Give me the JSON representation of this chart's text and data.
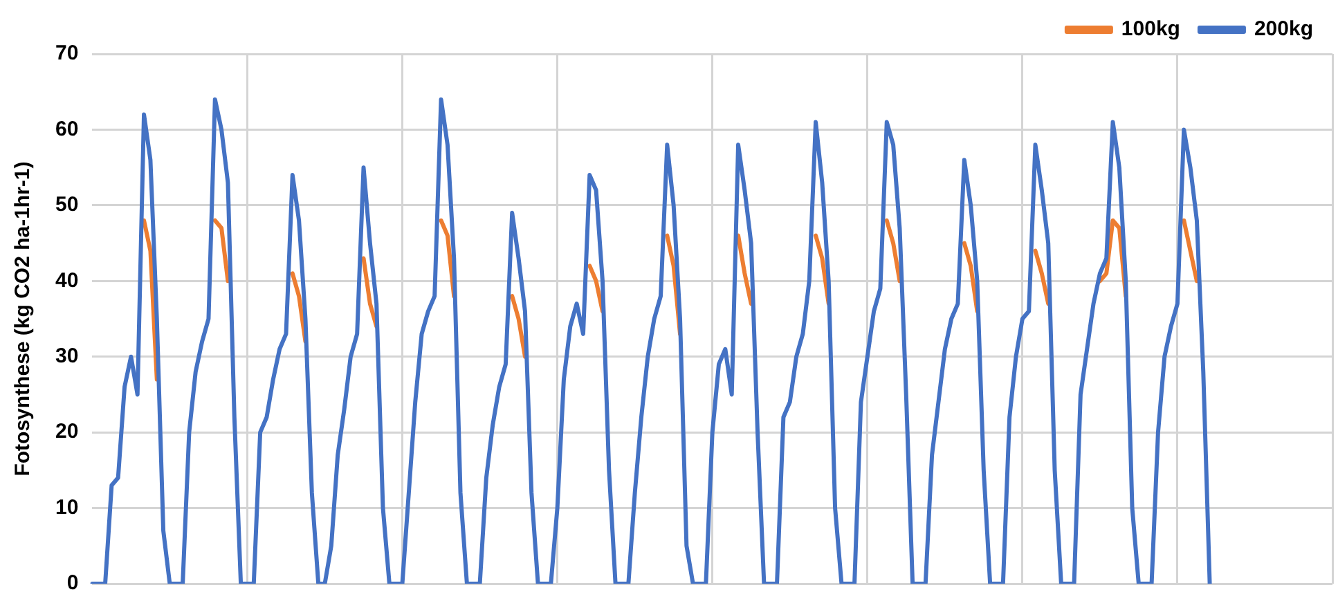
{
  "chart_data": {
    "type": "line",
    "ylabel": "Fotosynthese (kg CO2 ha-1hr-1)",
    "categories": [
      null,
      null,
      null,
      null,
      null,
      null,
      null,
      null,
      null,
      null,
      null,
      null,
      null,
      null,
      null,
      null,
      null,
      null,
      null,
      null,
      null,
      null,
      null,
      null,
      null,
      null,
      null,
      null,
      null,
      null,
      null,
      null,
      null,
      null,
      null,
      null,
      null,
      null,
      null,
      null,
      null,
      null,
      null,
      null,
      null,
      null,
      null,
      null,
      null,
      null,
      null,
      null,
      null,
      null,
      null,
      null,
      null,
      null,
      null,
      null,
      null,
      null,
      null,
      null,
      null,
      null,
      null,
      null,
      null,
      null,
      null,
      null,
      null,
      null,
      null,
      null,
      null,
      null,
      null,
      null,
      null,
      null,
      null,
      null,
      null,
      null,
      null,
      null,
      null,
      null,
      null,
      null,
      null,
      null,
      null,
      null,
      null,
      null,
      null,
      null,
      null,
      null,
      null,
      null,
      null,
      null,
      null,
      null,
      null,
      null,
      null,
      null,
      null,
      null,
      null,
      null,
      null,
      null,
      null,
      null,
      null,
      null,
      null,
      null,
      null,
      null,
      null,
      null,
      null,
      null,
      null,
      null,
      null,
      null,
      null,
      null,
      null,
      null,
      null,
      null,
      null,
      null,
      null,
      null,
      null,
      null,
      null,
      null,
      null,
      null,
      null,
      null,
      null,
      null,
      null,
      null,
      null,
      null,
      null,
      null,
      null,
      null,
      null,
      null,
      null,
      null,
      null,
      null,
      null,
      null,
      null,
      null,
      null,
      null,
      null,
      null,
      null,
      null,
      null,
      null,
      null,
      null,
      null,
      null,
      null,
      null,
      null,
      null,
      null,
      null,
      null,
      null,
      null
    ],
    "series": [
      {
        "name": "100kg",
        "color": "#ed7d31",
        "values": [
          null,
          null,
          null,
          null,
          null,
          null,
          null,
          null,
          48,
          44,
          27,
          null,
          null,
          null,
          null,
          null,
          null,
          null,
          null,
          48,
          47,
          40,
          null,
          null,
          null,
          null,
          null,
          null,
          null,
          null,
          null,
          41,
          38,
          32,
          null,
          null,
          null,
          null,
          null,
          null,
          null,
          null,
          43,
          37,
          34,
          null,
          null,
          null,
          null,
          null,
          null,
          null,
          null,
          null,
          48,
          46,
          38,
          null,
          null,
          null,
          null,
          null,
          null,
          null,
          null,
          38,
          35,
          30,
          null,
          null,
          null,
          null,
          null,
          null,
          null,
          null,
          null,
          42,
          40,
          36,
          null,
          null,
          null,
          null,
          null,
          null,
          null,
          null,
          null,
          46,
          42,
          33,
          null,
          null,
          null,
          null,
          null,
          null,
          null,
          null,
          46,
          41,
          37,
          null,
          null,
          null,
          null,
          null,
          null,
          null,
          null,
          null,
          46,
          43,
          37,
          null,
          null,
          null,
          null,
          null,
          null,
          null,
          null,
          48,
          45,
          40,
          null,
          null,
          null,
          null,
          null,
          null,
          null,
          null,
          null,
          45,
          42,
          36,
          null,
          null,
          null,
          null,
          null,
          null,
          null,
          null,
          44,
          41,
          37,
          null,
          null,
          null,
          null,
          null,
          null,
          null,
          40,
          41,
          48,
          47,
          38,
          null,
          null,
          null,
          null,
          null,
          null,
          null,
          null,
          48,
          44,
          40,
          null,
          null,
          null,
          null,
          null,
          null,
          null,
          null,
          null,
          null,
          null,
          null,
          null,
          null,
          null,
          null,
          null,
          null,
          null,
          null,
          null
        ]
      },
      {
        "name": "200kg",
        "color": "#4472c4",
        "values": [
          0,
          0,
          0,
          13,
          14,
          26,
          30,
          25,
          62,
          56,
          35,
          7,
          0,
          0,
          0,
          20,
          28,
          32,
          35,
          64,
          60,
          53,
          22,
          0,
          0,
          0,
          20,
          22,
          27,
          31,
          33,
          54,
          48,
          35,
          12,
          0,
          0,
          5,
          17,
          23,
          30,
          33,
          55,
          45,
          37,
          10,
          0,
          0,
          0,
          12,
          24,
          33,
          36,
          38,
          64,
          58,
          43,
          12,
          0,
          0,
          0,
          14,
          21,
          26,
          29,
          49,
          43,
          36,
          12,
          0,
          0,
          0,
          10,
          27,
          34,
          37,
          33,
          54,
          52,
          40,
          15,
          0,
          0,
          0,
          12,
          22,
          30,
          35,
          38,
          58,
          50,
          35,
          5,
          0,
          0,
          0,
          20,
          29,
          31,
          25,
          58,
          52,
          45,
          20,
          0,
          0,
          0,
          22,
          24,
          30,
          33,
          40,
          61,
          53,
          40,
          10,
          0,
          0,
          0,
          24,
          30,
          36,
          39,
          61,
          58,
          47,
          25,
          0,
          0,
          0,
          17,
          24,
          31,
          35,
          37,
          56,
          50,
          40,
          15,
          0,
          0,
          0,
          22,
          30,
          35,
          36,
          58,
          52,
          45,
          15,
          0,
          0,
          0,
          25,
          31,
          37,
          41,
          43,
          61,
          55,
          40,
          10,
          0,
          0,
          0,
          20,
          30,
          34,
          37,
          60,
          55,
          48,
          28,
          0,
          null,
          null,
          null,
          null,
          null,
          null,
          null,
          null,
          null,
          null,
          null,
          null,
          null,
          null,
          null,
          null,
          null,
          null,
          null
        ]
      }
    ],
    "ylim": [
      0,
      70
    ],
    "yticks": [
      0,
      10,
      20,
      30,
      40,
      50,
      60,
      70
    ],
    "grid": true,
    "legend": "top right",
    "marker": "none",
    "line_style": "solid"
  }
}
